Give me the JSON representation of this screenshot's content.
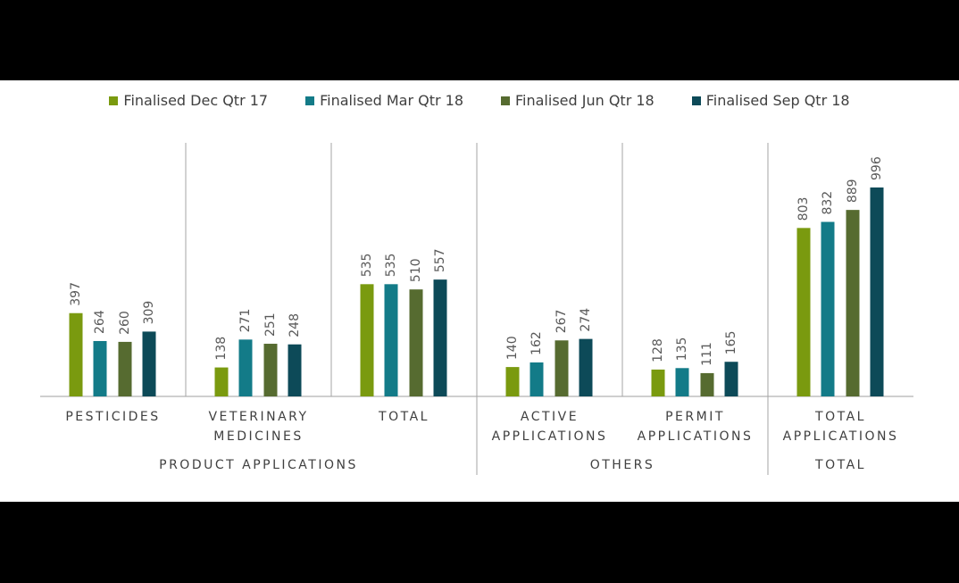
{
  "chart_data": {
    "type": "bar",
    "groups": [
      {
        "name": "PRODUCT APPLICATIONS",
        "categories": [
          "PESTICIDES",
          "VETERINARY MEDICINES",
          "TOTAL"
        ]
      },
      {
        "name": "OTHERS",
        "categories": [
          "ACTIVE APPLICATIONS",
          "PERMIT APPLICATIONS"
        ]
      },
      {
        "name": "TOTAL",
        "categories": [
          "TOTAL APPLICATIONS"
        ]
      }
    ],
    "series": [
      {
        "name": "Finalised Dec Qtr 17",
        "color": "#7a9a0f",
        "values": [
          397,
          138,
          535,
          140,
          128,
          803
        ]
      },
      {
        "name": "Finalised Mar Qtr 18",
        "color": "#137b88",
        "values": [
          264,
          271,
          535,
          162,
          135,
          832
        ]
      },
      {
        "name": "Finalised Jun Qtr 18",
        "color": "#566b30",
        "values": [
          260,
          251,
          510,
          267,
          111,
          889
        ]
      },
      {
        "name": "Finalised Sep Qtr 18",
        "color": "#0d4a58",
        "values": [
          309,
          248,
          557,
          274,
          165,
          996
        ]
      }
    ],
    "legend": "top"
  }
}
